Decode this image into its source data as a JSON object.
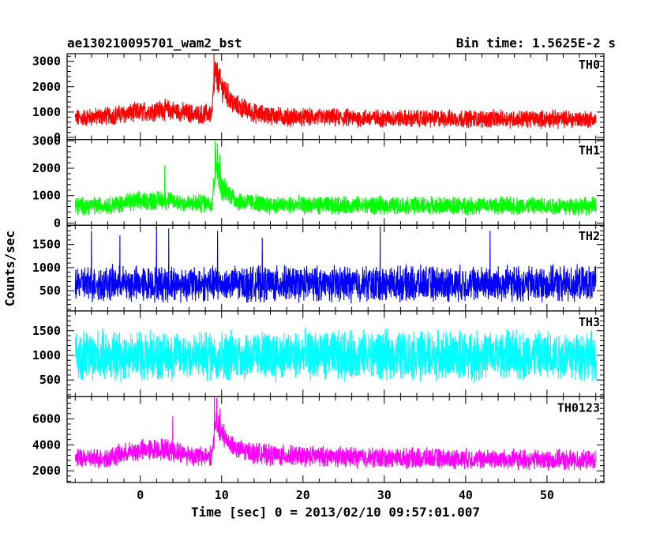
{
  "header": {
    "title": "ae130210095701_wam2_bst",
    "bin_time": "Bin time: 1.5625E-2 s"
  },
  "chart_data": {
    "type": "line",
    "title": "ae130210095701_wam2_bst",
    "subtitle": "Bin time: 1.5625E-2 s",
    "xlabel": "Time [sec] 0 = 2013/02/10 09:57:01.007",
    "ylabel": "Counts/sec",
    "xlim": [
      -9,
      57
    ],
    "x_ticks": [
      0,
      10,
      20,
      30,
      40,
      50
    ],
    "x_range": [
      -8,
      56
    ],
    "panels": [
      {
        "name": "TH0",
        "color": "#ff0000",
        "ylim": [
          -80,
          3300
        ],
        "y_ticks": [
          0,
          1000,
          2000,
          3000
        ],
        "baseline": 750,
        "noise": 300,
        "envelope": [
          [
            -8,
            750
          ],
          [
            -4,
            850
          ],
          [
            0,
            1000
          ],
          [
            3,
            1100
          ],
          [
            7,
            900
          ],
          [
            8.8,
            950
          ],
          [
            9.2,
            2600
          ],
          [
            10,
            2000
          ],
          [
            11.5,
            1300
          ],
          [
            14,
            950
          ],
          [
            18,
            800
          ],
          [
            30,
            750
          ],
          [
            56,
            720
          ]
        ],
        "spikes": [
          [
            9.05,
            3300
          ],
          [
            9.35,
            2900
          ],
          [
            9.6,
            2450
          ],
          [
            10.2,
            2200
          ]
        ]
      },
      {
        "name": "TH1",
        "color": "#00ff00",
        "ylim": [
          -80,
          3050
        ],
        "y_ticks": [
          0,
          1000,
          2000,
          3000
        ],
        "baseline": 650,
        "noise": 280,
        "envelope": [
          [
            -8,
            620
          ],
          [
            -4,
            650
          ],
          [
            0,
            800
          ],
          [
            3,
            850
          ],
          [
            6,
            700
          ],
          [
            8.8,
            750
          ],
          [
            9.3,
            2200
          ],
          [
            10,
            1300
          ],
          [
            12,
            800
          ],
          [
            16,
            650
          ],
          [
            30,
            640
          ],
          [
            56,
            620
          ]
        ],
        "spikes": [
          [
            9.2,
            3000
          ],
          [
            9.5,
            2900
          ],
          [
            9.8,
            2500
          ],
          [
            3.0,
            2100
          ]
        ]
      },
      {
        "name": "TH2",
        "color": "#0000ff",
        "ylim": [
          60,
          1920
        ],
        "y_ticks": [
          500,
          1000,
          1500
        ],
        "baseline": 650,
        "noise": 320,
        "envelope": [
          [
            -8,
            650
          ],
          [
            56,
            650
          ]
        ],
        "spikes": [
          [
            -6,
            1800
          ],
          [
            2,
            1900
          ],
          [
            3.5,
            1850
          ],
          [
            9.5,
            1800
          ],
          [
            29.5,
            1900
          ],
          [
            43,
            1800
          ],
          [
            -2.5,
            1700
          ],
          [
            15,
            1650
          ]
        ]
      },
      {
        "name": "TH3",
        "color": "#00ffff",
        "ylim": [
          160,
          1900
        ],
        "y_ticks": [
          500,
          1000,
          1500
        ],
        "baseline": 1000,
        "noise": 420,
        "envelope": [
          [
            -8,
            1000
          ],
          [
            56,
            1000
          ]
        ],
        "spikes": []
      },
      {
        "name": "TH0123",
        "color": "#ff00ff",
        "ylim": [
          1100,
          7700
        ],
        "y_ticks": [
          2000,
          4000,
          6000
        ],
        "baseline": 3000,
        "noise": 650,
        "envelope": [
          [
            -8,
            2900
          ],
          [
            -4,
            3000
          ],
          [
            0,
            3600
          ],
          [
            3,
            3700
          ],
          [
            7,
            3100
          ],
          [
            8.8,
            3200
          ],
          [
            9.3,
            5800
          ],
          [
            10,
            4800
          ],
          [
            12,
            3600
          ],
          [
            16,
            3200
          ],
          [
            30,
            3000
          ],
          [
            56,
            2800
          ]
        ],
        "spikes": [
          [
            9.1,
            7700
          ],
          [
            9.4,
            7600
          ],
          [
            9.8,
            6800
          ],
          [
            10.3,
            5600
          ],
          [
            4.0,
            6200
          ]
        ]
      }
    ]
  }
}
